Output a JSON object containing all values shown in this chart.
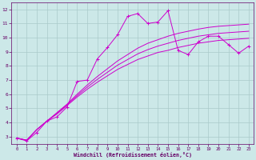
{
  "xlabel": "Windchill (Refroidissement éolien,°C)",
  "bg_color": "#cce8e8",
  "grid_color": "#aacaca",
  "line_color": "#cc00cc",
  "x_ticks": [
    0,
    1,
    2,
    3,
    4,
    5,
    6,
    7,
    8,
    9,
    10,
    11,
    12,
    13,
    14,
    15,
    16,
    17,
    18,
    19,
    20,
    21,
    22,
    23
  ],
  "y_ticks": [
    3,
    4,
    5,
    6,
    7,
    8,
    9,
    10,
    11,
    12
  ],
  "ylim": [
    2.5,
    12.5
  ],
  "xlim": [
    -0.5,
    23.5
  ],
  "series1_x": [
    0,
    1,
    2,
    3,
    4,
    5,
    6,
    7,
    8,
    9,
    10,
    11,
    12,
    13,
    14,
    15,
    16,
    17,
    18,
    19,
    20,
    21,
    22,
    23
  ],
  "series1_y": [
    2.9,
    2.7,
    3.3,
    4.1,
    4.4,
    5.1,
    6.9,
    7.0,
    8.5,
    9.3,
    10.2,
    11.5,
    11.7,
    11.0,
    11.1,
    11.9,
    9.1,
    8.8,
    9.7,
    10.1,
    10.1,
    9.5,
    8.9,
    9.4
  ],
  "series2_x": [
    0,
    1,
    2,
    3,
    4,
    5,
    6,
    7,
    8,
    9,
    10,
    11,
    12,
    13,
    14,
    15,
    16,
    17,
    18,
    19,
    20,
    21,
    22,
    23
  ],
  "series2_y": [
    2.9,
    2.75,
    3.5,
    4.1,
    4.6,
    5.2,
    5.8,
    6.35,
    6.85,
    7.3,
    7.75,
    8.1,
    8.45,
    8.7,
    8.95,
    9.1,
    9.3,
    9.45,
    9.6,
    9.7,
    9.8,
    9.85,
    9.9,
    9.95
  ],
  "series3_x": [
    0,
    1,
    2,
    3,
    4,
    5,
    6,
    7,
    8,
    9,
    10,
    11,
    12,
    13,
    14,
    15,
    16,
    17,
    18,
    19,
    20,
    21,
    22,
    23
  ],
  "series3_y": [
    2.9,
    2.75,
    3.5,
    4.1,
    4.65,
    5.25,
    5.9,
    6.5,
    7.05,
    7.55,
    8.05,
    8.45,
    8.85,
    9.15,
    9.4,
    9.6,
    9.8,
    9.95,
    10.1,
    10.2,
    10.3,
    10.35,
    10.4,
    10.45
  ],
  "series4_x": [
    0,
    1,
    2,
    3,
    4,
    5,
    6,
    7,
    8,
    9,
    10,
    11,
    12,
    13,
    14,
    15,
    16,
    17,
    18,
    19,
    20,
    21,
    22,
    23
  ],
  "series4_y": [
    2.9,
    2.75,
    3.5,
    4.1,
    4.7,
    5.3,
    6.0,
    6.65,
    7.25,
    7.8,
    8.35,
    8.8,
    9.25,
    9.6,
    9.85,
    10.1,
    10.3,
    10.45,
    10.6,
    10.72,
    10.8,
    10.85,
    10.9,
    10.95
  ]
}
